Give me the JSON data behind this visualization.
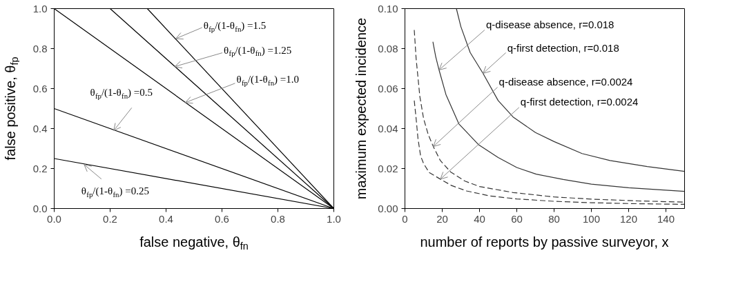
{
  "chart_data": [
    {
      "type": "line",
      "xlabel": "false negative, θ$_{fn}$",
      "ylabel": "false positive, θ$_{fp}$",
      "xlim": [
        0,
        1
      ],
      "ylim": [
        0,
        1
      ],
      "xticks": [
        {
          "value": 0,
          "label": "0.0"
        },
        0.2,
        0.4,
        0.6,
        0.8,
        {
          "value": 1,
          "label": "1.0"
        }
      ],
      "yticks": [
        {
          "value": 0,
          "label": "0.0"
        },
        0.2,
        0.4,
        0.6,
        0.8,
        {
          "value": 1,
          "label": "1.0"
        }
      ],
      "grid": false,
      "line_style": "solid",
      "series": [
        {
          "color": "#000000",
          "x": [
            0,
            1
          ],
          "values": [
            0.25,
            0
          ]
        },
        {
          "color": "#000000",
          "x": [
            0,
            1
          ],
          "values": [
            0.5,
            0
          ]
        },
        {
          "color": "#000000",
          "x": [
            0,
            1
          ],
          "values": [
            1.0,
            0
          ]
        },
        {
          "color": "#000000",
          "x": [
            0.2,
            1
          ],
          "values": [
            1.0,
            0
          ]
        },
        {
          "color": "#000000",
          "x": [
            0.333,
            1
          ],
          "values": [
            1.0,
            0
          ]
        }
      ],
      "annotations": [
        {
          "text": "θ$_{fp}$/(1-θ$_{fn}$) =1.5",
          "x": 0.435,
          "y": 0.85
        },
        {
          "text": "θ$_{fp}$/(1-θ$_{fn}$) =1.25",
          "x": 0.431,
          "y": 0.71
        },
        {
          "text": "θ$_{fp}$/(1-θ$_{fn}$) =1.0",
          "x": 0.469,
          "y": 0.53
        },
        {
          "text": "θ$_{fp}$/(1-θ$_{fn}$) =0.5",
          "x": 0.213,
          "y": 0.39
        },
        {
          "text": "θ$_{fp}$/(1-θ$_{fn}$) =0.25",
          "x": 0.107,
          "y": 0.22
        }
      ]
    },
    {
      "type": "line",
      "xlabel": "number of reports by passive surveyor, x",
      "ylabel": "maximum expected incidence",
      "xlim": [
        0,
        150
      ],
      "ylim": [
        0,
        0.1
      ],
      "xticks": [
        0,
        20,
        40,
        60,
        80,
        100,
        120,
        140
      ],
      "yticks": [
        {
          "value": 0,
          "label": "0.00"
        },
        {
          "value": 0.02,
          "label": "0.02"
        },
        {
          "value": 0.04,
          "label": "0.04"
        },
        {
          "value": 0.06,
          "label": "0.06"
        },
        {
          "value": 0.08,
          "label": "0.08"
        },
        {
          "value": 0.1,
          "label": "0.10"
        }
      ],
      "grid": false,
      "series": [
        {
          "color": "#333333",
          "line_style": "solid",
          "x": [
            27.6,
            30,
            35,
            41.9,
            50,
            58,
            70,
            80,
            95,
            110,
            130,
            150
          ],
          "values": [
            0.1,
            0.091,
            0.078,
            0.0676,
            0.054,
            0.0458,
            0.038,
            0.0335,
            0.0275,
            0.024,
            0.021,
            0.0186
          ]
        },
        {
          "color": "#333333",
          "line_style": "solid",
          "x": [
            15,
            16.5,
            18.3,
            22,
            28.9,
            39.4,
            50,
            60,
            70.4,
            85,
            100,
            120,
            150
          ],
          "values": [
            0.0834,
            0.076,
            0.0693,
            0.057,
            0.0424,
            0.032,
            0.0255,
            0.0205,
            0.0172,
            0.0145,
            0.0122,
            0.0104,
            0.0086
          ]
        },
        {
          "color": "#333333",
          "line_style": "dashed",
          "x": [
            5,
            6,
            8,
            10,
            12.5,
            15.2,
            19,
            24.5,
            32,
            40,
            58,
            80,
            100,
            125,
            150
          ],
          "values": [
            0.0893,
            0.075,
            0.056,
            0.045,
            0.037,
            0.031,
            0.024,
            0.0183,
            0.0138,
            0.011,
            0.008,
            0.0058,
            0.0047,
            0.0038,
            0.0032
          ]
        },
        {
          "color": "#333333",
          "line_style": "dashed",
          "x": [
            5,
            6,
            7,
            8.4,
            10,
            13,
            19,
            25,
            33,
            45.6,
            60,
            80,
            100,
            125,
            150
          ],
          "values": [
            0.054,
            0.045,
            0.035,
            0.0263,
            0.0225,
            0.018,
            0.0147,
            0.0115,
            0.0088,
            0.0063,
            0.0048,
            0.0036,
            0.0029,
            0.0024,
            0.0021
          ]
        }
      ],
      "annotations": [
        {
          "text": "q-disease absence, r=0.018",
          "x": 18.3,
          "y": 0.0693
        },
        {
          "text": "q-first detection, r=0.018",
          "x": 41.9,
          "y": 0.0676
        },
        {
          "text": "q-disease absence, r=0.0024",
          "x": 15.2,
          "y": 0.031
        },
        {
          "text": "q-first detection, r=0.0024",
          "x": 19,
          "y": 0.0147
        }
      ]
    }
  ]
}
